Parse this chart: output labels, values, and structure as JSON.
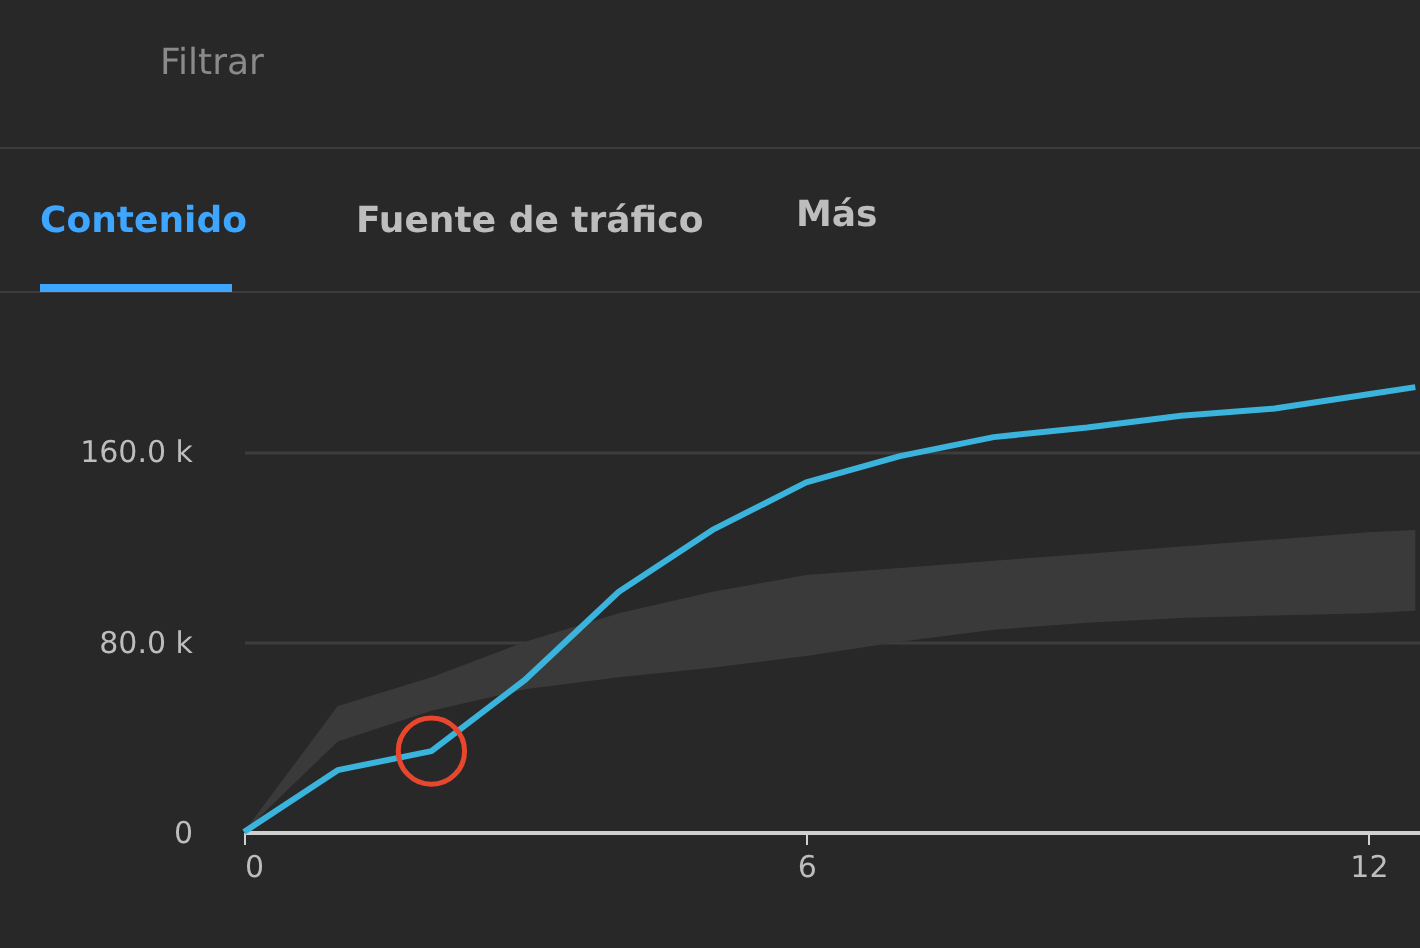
{
  "chart_data": {
    "type": "line",
    "x": [
      0,
      1,
      2,
      3,
      4,
      5,
      6,
      7,
      8,
      9,
      10,
      11,
      12,
      12.5
    ],
    "series": [
      {
        "color": "#3ab4dc",
        "values": [
          0,
          26000,
          34000,
          64000,
          101000,
          127000,
          147000,
          158000,
          166000,
          170000,
          175000,
          178000,
          184000,
          187000
        ],
        "lower": [
          0,
          38000,
          51000,
          60000,
          65000,
          69000,
          74000,
          80000,
          85000,
          88000,
          90000,
          91000,
          92000,
          93000
        ],
        "upper": [
          0,
          53000,
          65000,
          80000,
          92000,
          101000,
          108000,
          111000,
          114000,
          117000,
          120000,
          123000,
          126000,
          127000
        ]
      },
      {
        "type": "scatter",
        "x": [
          2
        ],
        "values": [
          34000
        ],
        "color": "#e8472e",
        "marker": "circle"
      }
    ],
    "xlim": [
      0,
      12.55
    ],
    "ylim": [
      0,
      227000
    ],
    "xticks": [
      0,
      6,
      12
    ],
    "yticks": [
      0,
      {
        "value": 80000,
        "label": "80.0 k"
      },
      {
        "value": 160000,
        "label": "160.0 k"
      }
    ],
    "grid": "y",
    "line_style": "solid",
    "annotations": [
      "Filtrar",
      "Contenido",
      "Fuente de tráfico",
      "Más"
    ]
  }
}
